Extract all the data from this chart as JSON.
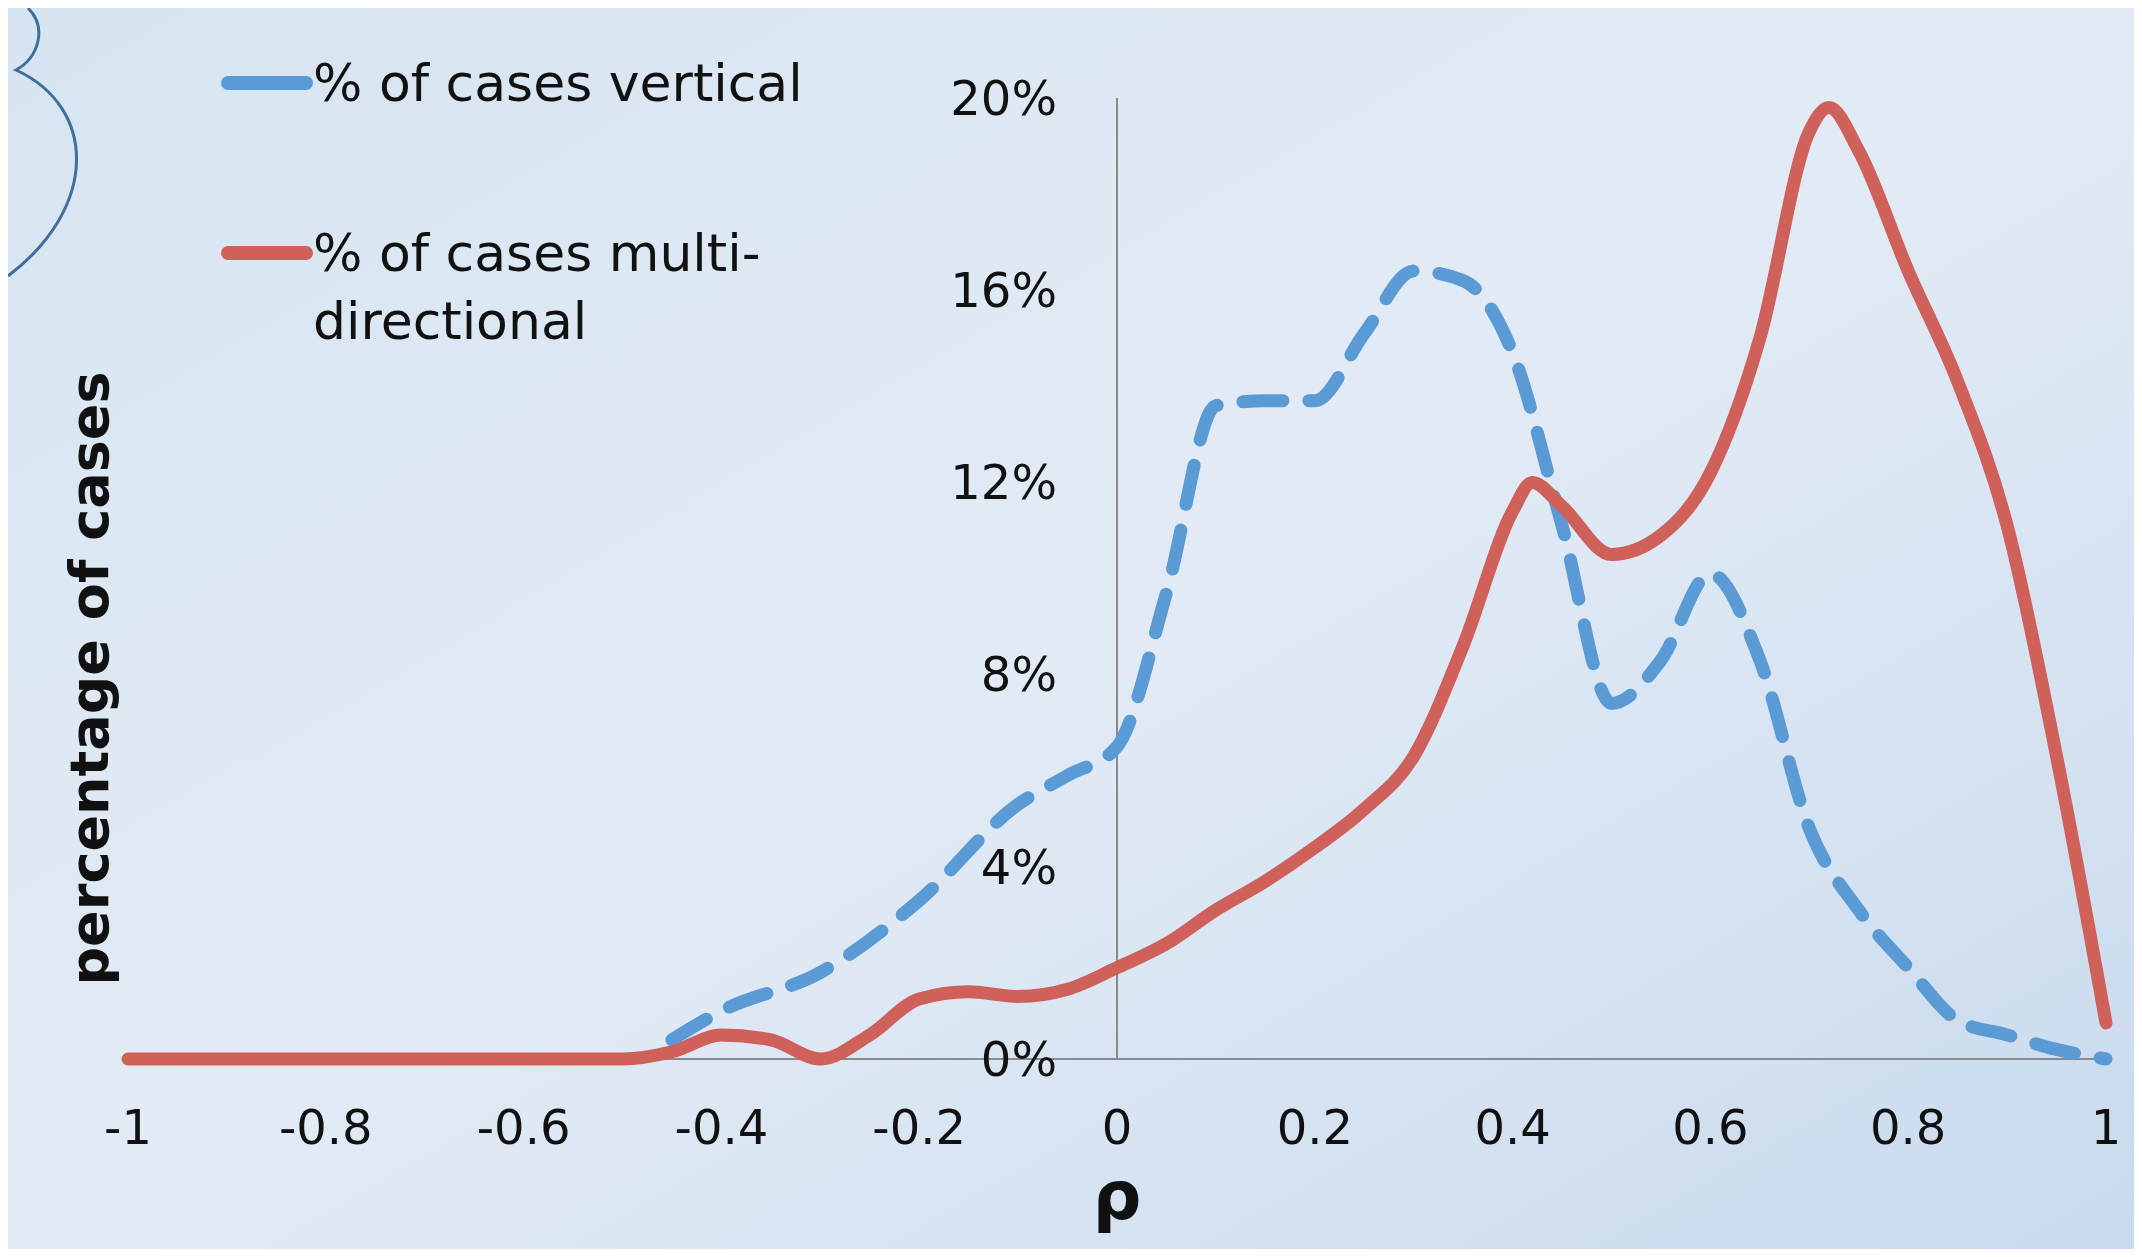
{
  "chart_data": {
    "type": "line",
    "xlabel": "ρ",
    "ylabel": "percentage of cases",
    "xlim": [
      -1,
      1
    ],
    "xticks": [
      -1,
      -0.8,
      -0.6,
      -0.4,
      -0.2,
      0,
      0.2,
      0.4,
      0.6,
      0.8,
      1
    ],
    "ylim": [
      0,
      20
    ],
    "yticks": [
      {
        "value": 0,
        "label": "0%"
      },
      {
        "value": 4,
        "label": "4%"
      },
      {
        "value": 8,
        "label": "8%"
      },
      {
        "value": 12,
        "label": "12%"
      },
      {
        "value": 16,
        "label": "16%"
      },
      {
        "value": 20,
        "label": "20%"
      }
    ],
    "legend": "top left",
    "marker": "none",
    "series": [
      {
        "name": "% of cases vertical",
        "color": "#5b9bd5",
        "line_style": "dashed",
        "x": [
          -0.45,
          -0.4,
          -0.3,
          -0.2,
          -0.1,
          -0.05,
          0,
          0.05,
          0.1,
          0.15,
          0.2,
          0.25,
          0.3,
          0.35,
          0.4,
          0.45,
          0.5,
          0.55,
          0.6,
          0.65,
          0.7,
          0.75,
          0.8,
          0.85,
          0.9,
          0.95,
          1
        ],
        "values": [
          0.4,
          1.0,
          1.8,
          3.3,
          5.3,
          5.9,
          6.5,
          9.7,
          13.6,
          13.7,
          13.7,
          15.1,
          16.4,
          16.2,
          14.7,
          11.1,
          7.4,
          8.3,
          10.1,
          8.3,
          4.8,
          3.1,
          1.9,
          0.8,
          0.5,
          0.2,
          0
        ]
      },
      {
        "name": "% of cases multi-directional",
        "color": "#d0605a",
        "line_style": "solid",
        "x": [
          -1,
          -0.9,
          -0.8,
          -0.7,
          -0.6,
          -0.5,
          -0.45,
          -0.4,
          -0.35,
          -0.3,
          -0.25,
          -0.2,
          -0.15,
          -0.1,
          -0.05,
          0,
          0.05,
          0.1,
          0.15,
          0.2,
          0.25,
          0.3,
          0.35,
          0.4,
          0.42,
          0.45,
          0.5,
          0.55,
          0.6,
          0.65,
          0.7,
          0.72,
          0.75,
          0.8,
          0.85,
          0.9,
          0.95,
          1
        ],
        "values": [
          0,
          0,
          0,
          0,
          0,
          0,
          0.15,
          0.5,
          0.4,
          0,
          0.5,
          1.25,
          1.4,
          1.3,
          1.45,
          1.9,
          2.4,
          3.1,
          3.7,
          4.4,
          5.2,
          6.3,
          8.6,
          11.4,
          12.0,
          11.5,
          10.5,
          10.9,
          12.2,
          15.0,
          19.3,
          19.8,
          18.9,
          16.4,
          14.1,
          11.1,
          6.3,
          0.75
        ]
      }
    ]
  }
}
